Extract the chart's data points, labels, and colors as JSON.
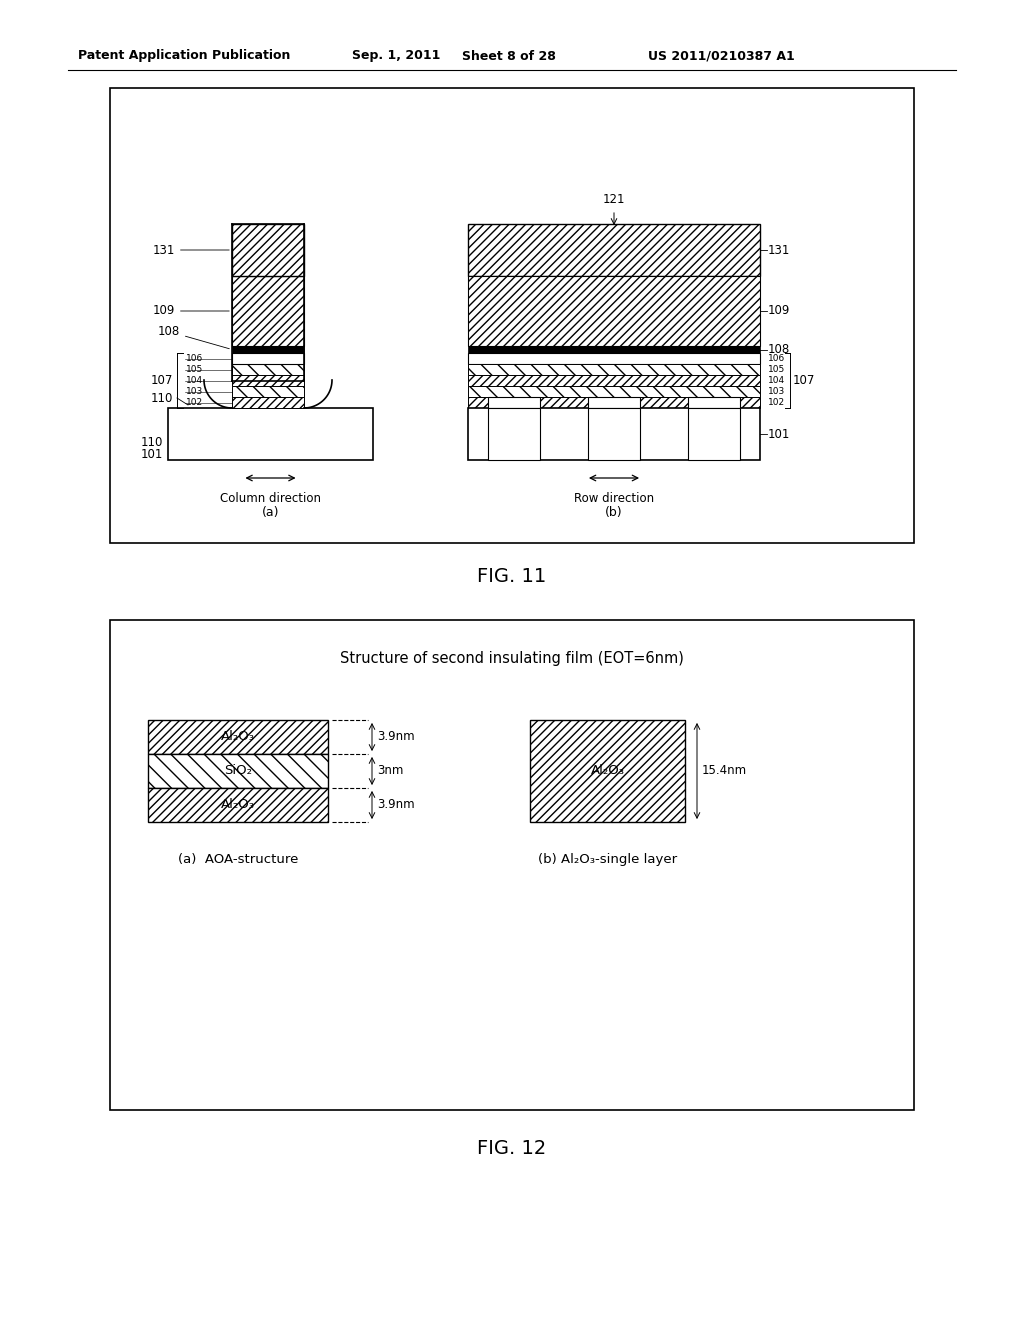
{
  "bg_color": "#ffffff",
  "header_text": "Patent Application Publication",
  "header_date": "Sep. 1, 2011",
  "header_sheet": "Sheet 8 of 28",
  "header_patent": "US 2011/0210387 A1",
  "fig11_title": "FIG. 11",
  "fig12_title": "FIG. 12",
  "fig12_subtitle": "Structure of second insulating film (EOT=6nm)",
  "fig12_label_a": "(a)  AOA-structure",
  "fig12_label_b": "(b) Al₂O₃-single layer"
}
